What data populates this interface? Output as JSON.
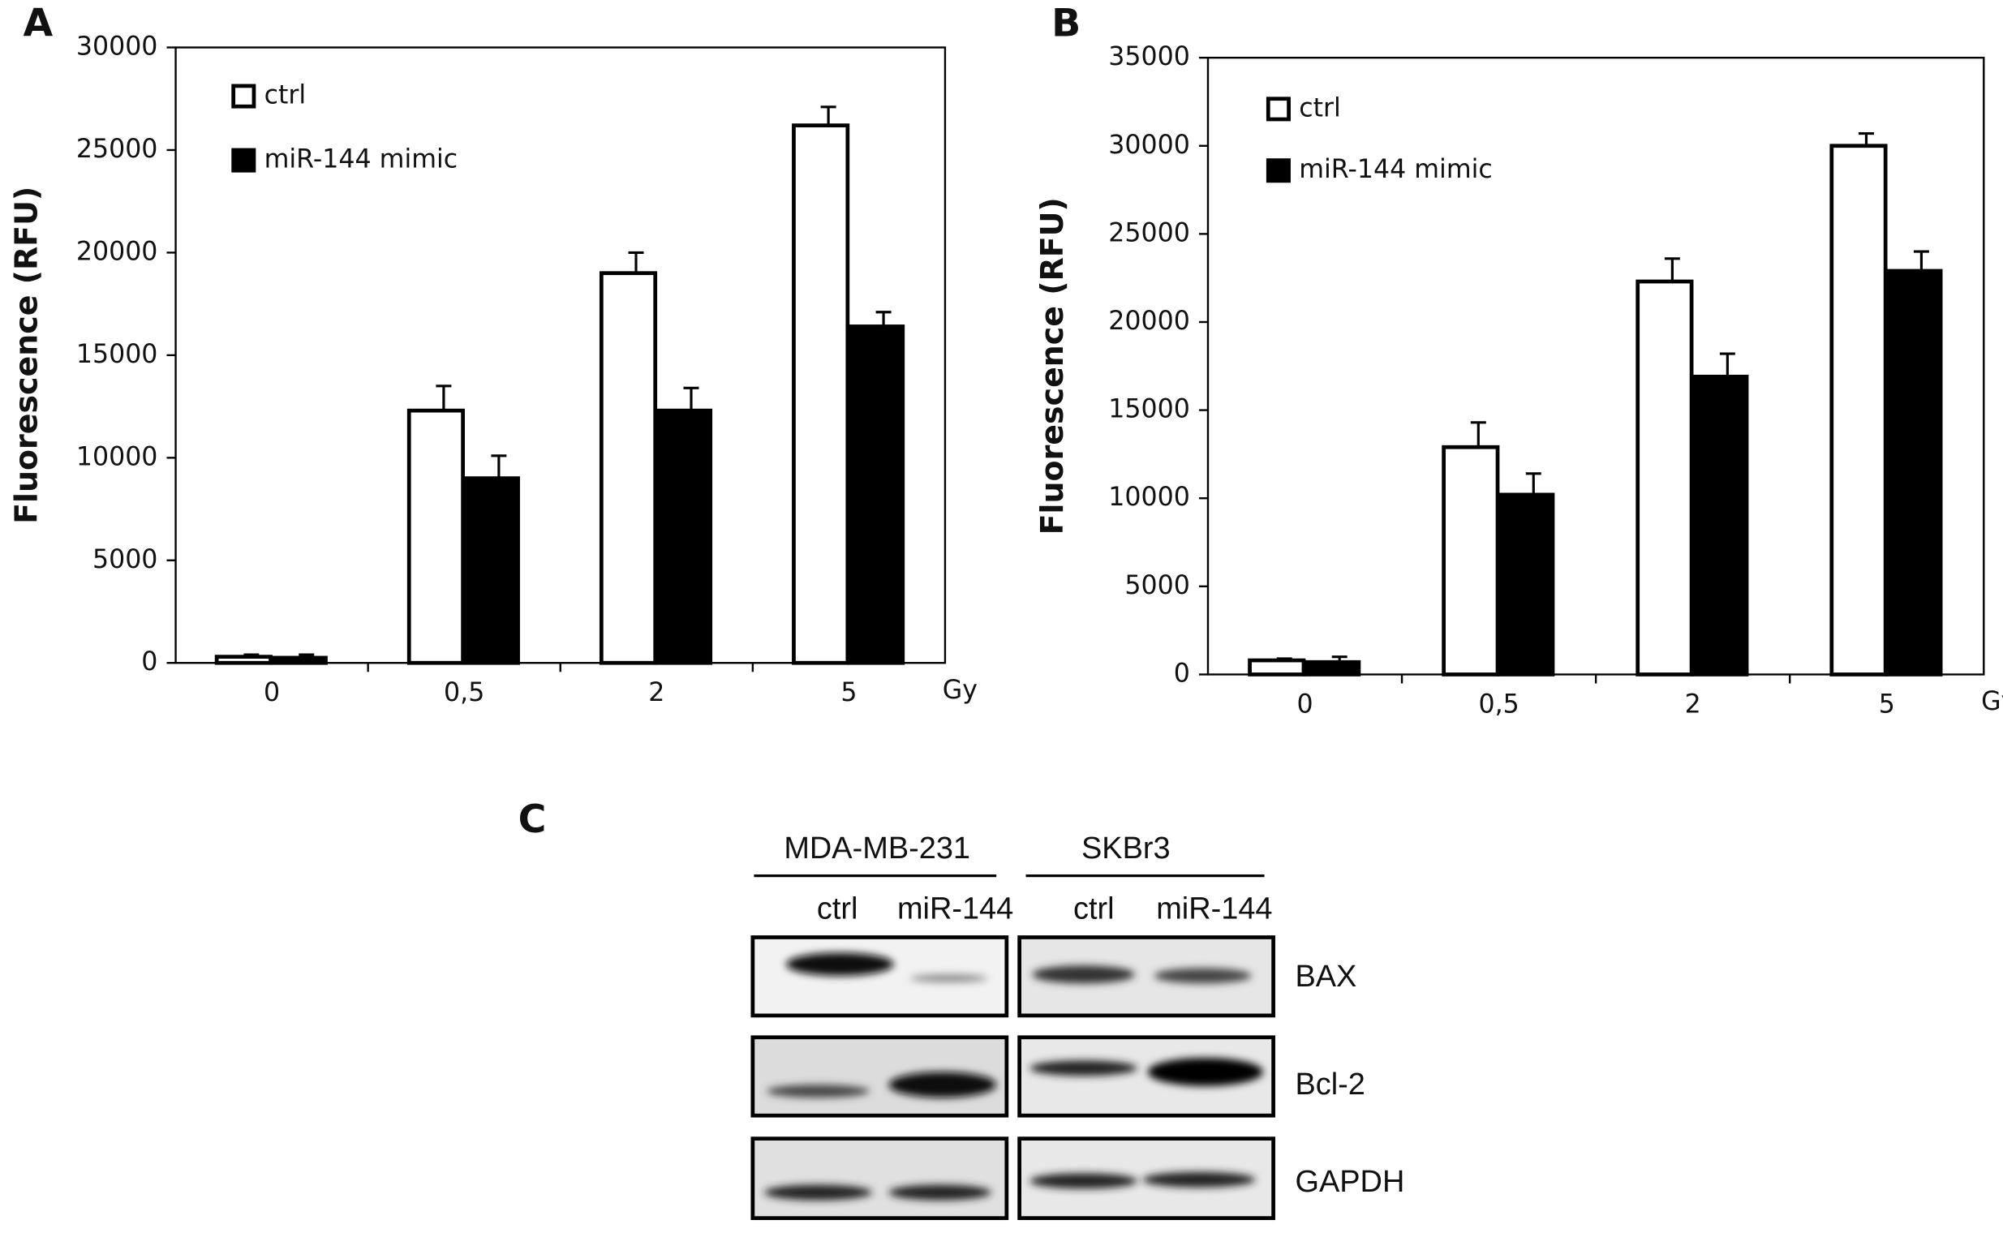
{
  "chart_data": [
    {
      "type": "bar",
      "panel_label": "A",
      "y_label": "Fluorescence (RFU)",
      "x_label": "Gy",
      "categories": [
        "0",
        "0,5",
        "2",
        "5"
      ],
      "series": [
        {
          "name": "ctrl",
          "color": "#ffffff",
          "values": [
            300,
            12300,
            19000,
            26200
          ],
          "errors": [
            100,
            1200,
            1000,
            900
          ]
        },
        {
          "name": "miR-144 mimic",
          "color": "#000000",
          "values": [
            250,
            9000,
            12300,
            16400
          ],
          "errors": [
            150,
            1100,
            1100,
            700
          ]
        }
      ],
      "ylim": [
        0,
        30000
      ],
      "yticks": [
        0,
        5000,
        10000,
        15000,
        20000,
        25000,
        30000
      ],
      "grid": false,
      "legend": "top-left"
    },
    {
      "type": "bar",
      "panel_label": "B",
      "y_label": "Fluorescence (RFU)",
      "x_label": "Gy",
      "categories": [
        "0",
        "0,5",
        "2",
        "5"
      ],
      "series": [
        {
          "name": "ctrl",
          "color": "#ffffff",
          "values": [
            800,
            12900,
            22300,
            30000
          ],
          "errors": [
            100,
            1400,
            1300,
            700
          ]
        },
        {
          "name": "miR-144 mimic",
          "color": "#000000",
          "values": [
            700,
            10200,
            16900,
            22900
          ],
          "errors": [
            300,
            1200,
            1300,
            1100
          ]
        }
      ],
      "ylim": [
        0,
        35000
      ],
      "yticks": [
        0,
        5000,
        10000,
        15000,
        20000,
        25000,
        30000,
        35000
      ],
      "grid": false,
      "legend": "top-left"
    }
  ],
  "blot": {
    "panel_label": "C",
    "groups": [
      "MDA-MB-231",
      "SKBr3"
    ],
    "lanes": [
      "ctrl",
      "miR-144",
      "ctrl",
      "miR-144"
    ],
    "rows": [
      "BAX",
      "Bcl-2",
      "GAPDH"
    ]
  }
}
